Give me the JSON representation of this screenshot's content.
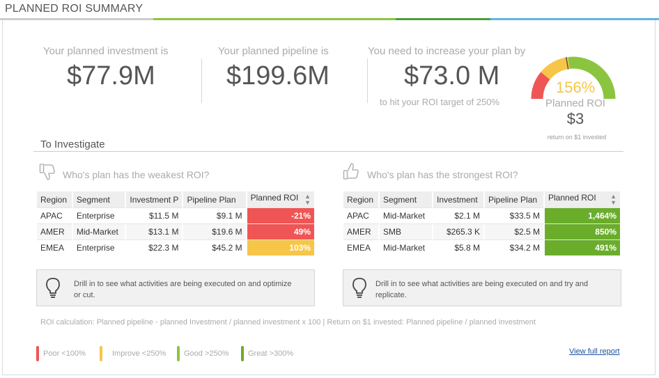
{
  "header": {
    "title": "PLANNED ROI SUMMARY",
    "colors": {
      "gray": "#cccccc",
      "green": "#8bc53f",
      "dark_green": "#4a9e3a",
      "blue": "#5fb4e0"
    }
  },
  "kpis": {
    "investment": {
      "label": "Your planned investment is",
      "value": "$77.9M"
    },
    "pipeline": {
      "label": "Your planned pipeline is",
      "value": "$199.6M"
    },
    "increase": {
      "label": "You need to increase your plan by",
      "value": "$73.0 M",
      "sub": "to hit your ROI target of 250%"
    }
  },
  "gauge": {
    "percent_text": "156%",
    "label": "Planned ROI",
    "amount": "$3",
    "note": "return on $1 invested",
    "needle_percent": 156,
    "colors": {
      "poor": "#f05555",
      "improve": "#f7c548",
      "good": "#8bc53f",
      "great": "#6aad2b"
    }
  },
  "investigate": {
    "title": "To Investigate",
    "weakest": {
      "question": "Who's plan has the weakest ROI?",
      "columns": [
        "Region",
        "Segment",
        "Investment P",
        "Pipeline Plan",
        "Planned ROI"
      ],
      "rows": [
        {
          "region": "APAC",
          "segment": "Enterprise",
          "investment": "$11.5 M",
          "pipeline": "$9.1 M",
          "roi": "-21%",
          "color": "#f05555"
        },
        {
          "region": "AMER",
          "segment": "Mid-Market",
          "investment": "$13.1 M",
          "pipeline": "$19.6 M",
          "roi": "49%",
          "color": "#f05555"
        },
        {
          "region": "EMEA",
          "segment": "Enterprise",
          "investment": "$22.3 M",
          "pipeline": "$45.2 M",
          "roi": "103%",
          "color": "#f7c548"
        }
      ],
      "tip": "Drill in to see what activities are being executed on and optimize or cut."
    },
    "strongest": {
      "question": "Who's plan has the strongest ROI?",
      "columns": [
        "Region",
        "Segment",
        "Investment",
        "Pipeline Plan",
        "Planned ROI"
      ],
      "rows": [
        {
          "region": "APAC",
          "segment": "Mid-Market",
          "investment": "$2.1 M",
          "pipeline": "$33.5 M",
          "roi": "1,464%",
          "color": "#6aad2b"
        },
        {
          "region": "AMER",
          "segment": "SMB",
          "investment": "$265.3 K",
          "pipeline": "$2.5 M",
          "roi": "850%",
          "color": "#6aad2b"
        },
        {
          "region": "EMEA",
          "segment": "Mid-Market",
          "investment": "$5.8 M",
          "pipeline": "$34.2 M",
          "roi": "491%",
          "color": "#6aad2b"
        }
      ],
      "tip": "Drill in to see what activities are being executed on and try and replicate."
    }
  },
  "footnote": "ROI calculation: Planned pipeline - planned Investment / planned investment x 100 | Return on $1 invested: Planned pipeline / planned investment",
  "legend": [
    {
      "label": "Poor <100%",
      "color": "#f05555"
    },
    {
      "label": "Improve <250%",
      "color": "#f7c548"
    },
    {
      "label": "Good >250%",
      "color": "#8bc53f"
    },
    {
      "label": "Great >300%",
      "color": "#6aad2b"
    }
  ],
  "link": {
    "label": "View full report"
  }
}
